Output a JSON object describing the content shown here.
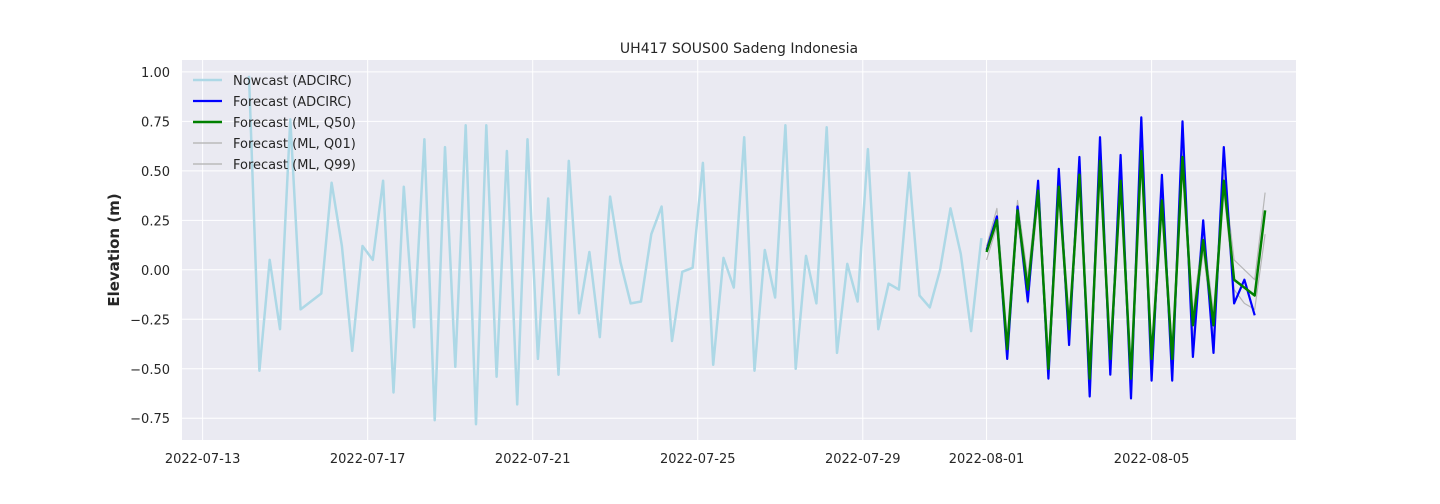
{
  "chart_data": {
    "type": "line",
    "title": "UH417 SOUS00 Sadeng Indonesia",
    "xlabel": "",
    "ylabel": "Elevation (m)",
    "xlim": [
      "2022-07-12T12:00",
      "2022-08-08T12:00"
    ],
    "ylim": [
      -0.86,
      1.06
    ],
    "x_ticks": [
      "2022-07-13",
      "2022-07-17",
      "2022-07-21",
      "2022-07-25",
      "2022-07-29",
      "2022-08-01",
      "2022-08-05"
    ],
    "y_ticks": [
      -0.75,
      -0.5,
      -0.25,
      0.0,
      0.25,
      0.5,
      0.75,
      1.0
    ],
    "y_tick_labels": [
      "−0.75",
      "−0.50",
      "−0.25",
      "0.00",
      "0.25",
      "0.50",
      "0.75",
      "1.00"
    ],
    "grid": true,
    "legend_position": "top-left",
    "series": [
      {
        "name": "Nowcast (ADCIRC)",
        "color": "#add8e6",
        "x": [
          "2022-07-14T03:00",
          "2022-07-14T09:00",
          "2022-07-14T15:00",
          "2022-07-14T21:00",
          "2022-07-15T03:00",
          "2022-07-15T09:00",
          "2022-07-15T21:00",
          "2022-07-16T03:00",
          "2022-07-16T09:00",
          "2022-07-16T15:00",
          "2022-07-16T21:00",
          "2022-07-17T03:00",
          "2022-07-17T09:00",
          "2022-07-17T15:00",
          "2022-07-17T21:00",
          "2022-07-18T03:00",
          "2022-07-18T09:00",
          "2022-07-18T15:00",
          "2022-07-18T21:00",
          "2022-07-19T03:00",
          "2022-07-19T09:00",
          "2022-07-19T15:00",
          "2022-07-19T21:00",
          "2022-07-20T03:00",
          "2022-07-20T09:00",
          "2022-07-20T15:00",
          "2022-07-20T21:00",
          "2022-07-21T03:00",
          "2022-07-21T09:00",
          "2022-07-21T15:00",
          "2022-07-21T21:00",
          "2022-07-22T03:00",
          "2022-07-22T09:00",
          "2022-07-22T15:00",
          "2022-07-22T21:00",
          "2022-07-23T03:00",
          "2022-07-23T09:00",
          "2022-07-23T15:00",
          "2022-07-23T21:00",
          "2022-07-24T03:00",
          "2022-07-24T09:00",
          "2022-07-24T15:00",
          "2022-07-24T21:00",
          "2022-07-25T03:00",
          "2022-07-25T09:00",
          "2022-07-25T15:00",
          "2022-07-25T21:00",
          "2022-07-26T03:00",
          "2022-07-26T09:00",
          "2022-07-26T15:00",
          "2022-07-26T21:00",
          "2022-07-27T03:00",
          "2022-07-27T09:00",
          "2022-07-27T15:00",
          "2022-07-27T21:00",
          "2022-07-28T03:00",
          "2022-07-28T09:00",
          "2022-07-28T15:00",
          "2022-07-28T21:00",
          "2022-07-29T03:00",
          "2022-07-29T09:00",
          "2022-07-29T15:00",
          "2022-07-29T21:00",
          "2022-07-30T03:00",
          "2022-07-30T09:00",
          "2022-07-30T15:00",
          "2022-07-30T21:00",
          "2022-07-31T03:00",
          "2022-07-31T09:00",
          "2022-07-31T15:00",
          "2022-07-31T21:00"
        ],
        "y": [
          0.98,
          -0.51,
          0.05,
          -0.3,
          0.76,
          -0.2,
          -0.12,
          0.44,
          0.12,
          -0.41,
          0.12,
          0.05,
          0.45,
          -0.62,
          0.42,
          -0.29,
          0.66,
          -0.76,
          0.62,
          -0.49,
          0.73,
          -0.78,
          0.73,
          -0.54,
          0.6,
          -0.68,
          0.66,
          -0.45,
          0.36,
          -0.53,
          0.55,
          -0.22,
          0.09,
          -0.34,
          0.37,
          0.04,
          -0.17,
          -0.16,
          0.18,
          0.32,
          -0.36,
          -0.01,
          0.01,
          0.54,
          -0.48,
          0.06,
          -0.09,
          0.67,
          -0.51,
          0.1,
          -0.14,
          0.73,
          -0.5,
          0.07,
          -0.17,
          0.72,
          -0.42,
          0.03,
          -0.16,
          0.61,
          -0.3,
          -0.07,
          -0.1,
          0.49,
          -0.13,
          -0.19,
          0.0,
          0.31,
          0.08,
          -0.31,
          0.16
        ]
      },
      {
        "name": "Forecast (ADCIRC)",
        "color": "#0000ff",
        "x": [
          "2022-08-01T00:00",
          "2022-08-01T06:00",
          "2022-08-01T12:00",
          "2022-08-01T18:00",
          "2022-08-02T00:00",
          "2022-08-02T06:00",
          "2022-08-02T12:00",
          "2022-08-02T18:00",
          "2022-08-03T00:00",
          "2022-08-03T06:00",
          "2022-08-03T12:00",
          "2022-08-03T18:00",
          "2022-08-04T00:00",
          "2022-08-04T06:00",
          "2022-08-04T12:00",
          "2022-08-04T18:00",
          "2022-08-05T00:00",
          "2022-08-05T06:00",
          "2022-08-05T12:00",
          "2022-08-05T18:00",
          "2022-08-06T00:00",
          "2022-08-06T06:00",
          "2022-08-06T12:00",
          "2022-08-06T18:00",
          "2022-08-07T00:00",
          "2022-08-07T06:00",
          "2022-08-07T12:00",
          "2022-08-07T18:00"
        ],
        "y": [
          0.1,
          0.27,
          -0.45,
          0.32,
          -0.16,
          0.45,
          -0.55,
          0.51,
          -0.38,
          0.57,
          -0.64,
          0.67,
          -0.53,
          0.58,
          -0.65,
          0.77,
          -0.56,
          0.48,
          -0.56,
          0.75,
          -0.44,
          0.25,
          -0.42,
          0.62,
          -0.17,
          -0.05,
          -0.23,
          null
        ]
      },
      {
        "name": "Forecast (ML, Q50)",
        "color": "#008000",
        "x": [
          "2022-08-01T00:00",
          "2022-08-01T06:00",
          "2022-08-01T12:00",
          "2022-08-01T18:00",
          "2022-08-02T00:00",
          "2022-08-02T06:00",
          "2022-08-02T12:00",
          "2022-08-02T18:00",
          "2022-08-03T00:00",
          "2022-08-03T06:00",
          "2022-08-03T12:00",
          "2022-08-03T18:00",
          "2022-08-04T00:00",
          "2022-08-04T06:00",
          "2022-08-04T12:00",
          "2022-08-04T18:00",
          "2022-08-05T00:00",
          "2022-08-05T06:00",
          "2022-08-05T12:00",
          "2022-08-05T18:00",
          "2022-08-06T00:00",
          "2022-08-06T06:00",
          "2022-08-06T12:00",
          "2022-08-06T18:00",
          "2022-08-07T00:00",
          "2022-08-07T06:00",
          "2022-08-07T12:00",
          "2022-08-07T18:00"
        ],
        "y": [
          0.09,
          0.25,
          -0.4,
          0.3,
          -0.1,
          0.4,
          -0.5,
          0.42,
          -0.3,
          0.48,
          -0.55,
          0.55,
          -0.45,
          0.45,
          -0.55,
          0.6,
          -0.45,
          0.35,
          -0.45,
          0.57,
          -0.28,
          0.15,
          -0.28,
          0.45,
          -0.05,
          -0.09,
          -0.13,
          0.3
        ]
      },
      {
        "name": "Forecast (ML, Q01)",
        "color": "#b0b0b0",
        "x": [
          "2022-08-01T00:00",
          "2022-08-01T06:00",
          "2022-08-01T12:00",
          "2022-08-01T18:00",
          "2022-08-02T00:00",
          "2022-08-02T06:00",
          "2022-08-02T12:00",
          "2022-08-02T18:00",
          "2022-08-03T00:00",
          "2022-08-03T06:00",
          "2022-08-03T12:00",
          "2022-08-03T18:00",
          "2022-08-04T00:00",
          "2022-08-04T06:00",
          "2022-08-04T12:00",
          "2022-08-04T18:00",
          "2022-08-05T00:00",
          "2022-08-05T06:00",
          "2022-08-05T12:00",
          "2022-08-05T18:00",
          "2022-08-06T00:00",
          "2022-08-06T06:00",
          "2022-08-06T12:00",
          "2022-08-06T18:00",
          "2022-08-07T00:00",
          "2022-08-07T06:00",
          "2022-08-07T12:00",
          "2022-08-07T18:00"
        ],
        "y": [
          0.05,
          0.22,
          -0.44,
          0.26,
          -0.17,
          0.36,
          -0.55,
          0.38,
          -0.36,
          0.44,
          -0.6,
          0.5,
          -0.51,
          0.4,
          -0.6,
          0.55,
          -0.51,
          0.3,
          -0.51,
          0.52,
          -0.34,
          0.1,
          -0.34,
          0.4,
          -0.1,
          -0.17,
          -0.2,
          0.18
        ]
      },
      {
        "name": "Forecast (ML, Q99)",
        "color": "#b0b0b0",
        "x": [
          "2022-08-01T00:00",
          "2022-08-01T06:00",
          "2022-08-01T12:00",
          "2022-08-01T18:00",
          "2022-08-02T00:00",
          "2022-08-02T06:00",
          "2022-08-02T12:00",
          "2022-08-02T18:00",
          "2022-08-03T00:00",
          "2022-08-03T06:00",
          "2022-08-03T12:00",
          "2022-08-03T18:00",
          "2022-08-04T00:00",
          "2022-08-04T06:00",
          "2022-08-04T12:00",
          "2022-08-04T18:00",
          "2022-08-05T00:00",
          "2022-08-05T06:00",
          "2022-08-05T12:00",
          "2022-08-05T18:00",
          "2022-08-06T00:00",
          "2022-08-06T06:00",
          "2022-08-06T12:00",
          "2022-08-06T18:00",
          "2022-08-07T00:00",
          "2022-08-07T06:00",
          "2022-08-07T12:00",
          "2022-08-07T18:00"
        ],
        "y": [
          0.12,
          0.31,
          -0.34,
          0.35,
          -0.04,
          0.45,
          -0.44,
          0.47,
          -0.24,
          0.52,
          -0.49,
          0.59,
          -0.39,
          0.5,
          -0.49,
          0.64,
          -0.39,
          0.4,
          -0.39,
          0.61,
          -0.22,
          0.2,
          -0.22,
          0.49,
          0.05,
          0.0,
          -0.05,
          0.39
        ]
      }
    ]
  }
}
